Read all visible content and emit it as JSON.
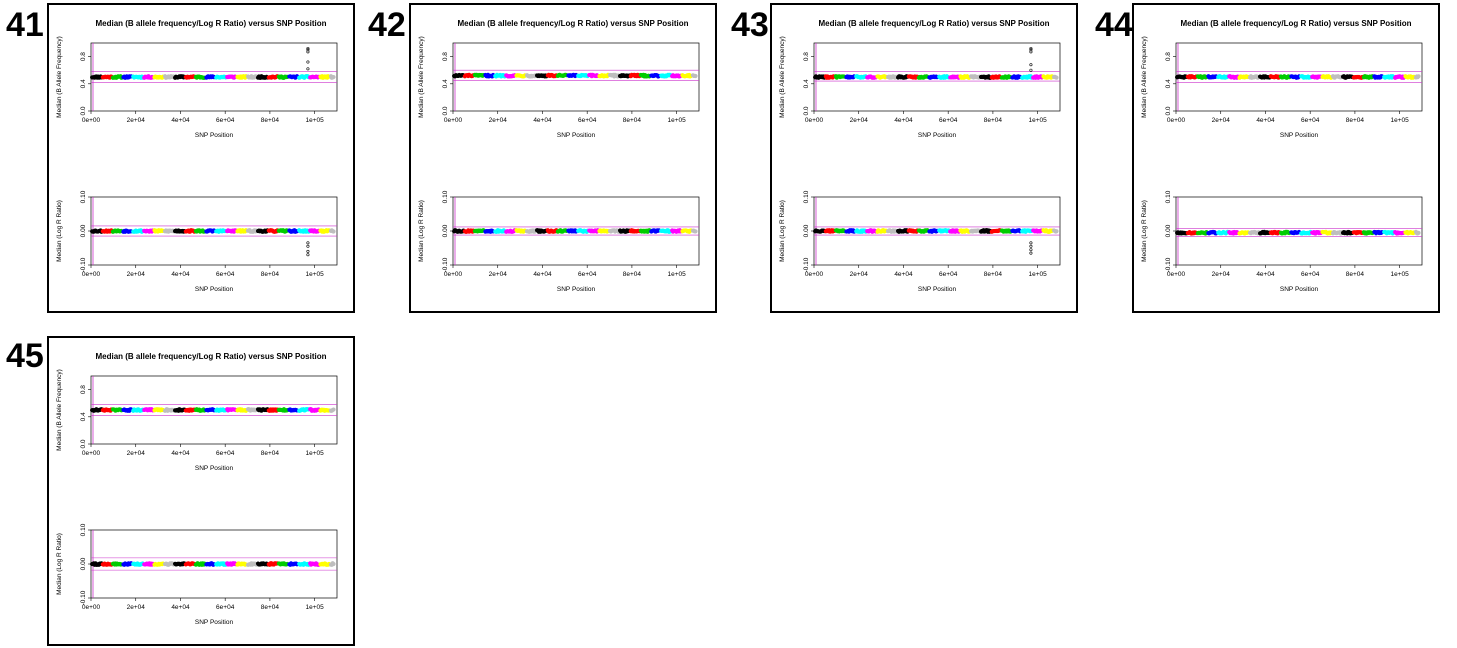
{
  "title": "Median (B allele frequency/Log R Ratio) versus SNP Position",
  "x_axis_label": "SNP Position",
  "x_tick_labels": [
    "0e+00",
    "2e+04",
    "4e+04",
    "6e+04",
    "8e+04",
    "1e+05"
  ],
  "baf_axis_label": "Median (B Allele Frequency)",
  "baf_tick_labels": [
    "0.0",
    "0.4",
    "0.8"
  ],
  "lrr_axis_label": "Median (Log R Ratio)",
  "lrr_tick_labels": [
    "-0.10",
    "0.00",
    "0.10"
  ],
  "colors": {
    "series": [
      "#000000",
      "#ff0000",
      "#00cc00",
      "#0000ff",
      "#00ffff",
      "#ff00ff",
      "#ffff00",
      "#bebebe"
    ],
    "reference_line": "#cc33cc"
  },
  "chart_data": [
    {
      "panel": "41",
      "type": "scatter",
      "x_range": [
        0,
        110000
      ],
      "baf": {
        "ylim": [
          0,
          1
        ],
        "center": 0.5,
        "ref_lines": [
          0.58,
          0.42
        ],
        "outliers": {
          "x": 97000,
          "values": [
            0.92,
            0.9,
            0.87,
            0.72,
            0.62
          ]
        }
      },
      "lrr": {
        "ylim": [
          -0.1,
          0.1
        ],
        "center": 0.0,
        "ref_lines": [
          0.015,
          -0.015
        ],
        "outliers": {
          "x": 97000,
          "values": [
            -0.035,
            -0.045,
            -0.06,
            -0.07
          ]
        }
      }
    },
    {
      "panel": "42",
      "type": "scatter",
      "x_range": [
        0,
        110000
      ],
      "baf": {
        "ylim": [
          0,
          1
        ],
        "center": 0.52,
        "ref_lines": [
          0.6,
          0.45
        ],
        "outliers": null
      },
      "lrr": {
        "ylim": [
          -0.1,
          0.1
        ],
        "center": 0.0,
        "ref_lines": [
          0.012,
          -0.012
        ],
        "outliers": null
      }
    },
    {
      "panel": "43",
      "type": "scatter",
      "x_range": [
        0,
        110000
      ],
      "baf": {
        "ylim": [
          0,
          1
        ],
        "center": 0.5,
        "ref_lines": [
          0.58,
          0.44
        ],
        "outliers": {
          "x": 97000,
          "values": [
            0.92,
            0.9,
            0.87,
            0.68,
            0.6
          ]
        }
      },
      "lrr": {
        "ylim": [
          -0.1,
          0.1
        ],
        "center": 0.0,
        "ref_lines": [
          0.012,
          -0.012
        ],
        "outliers": {
          "x": 97000,
          "values": [
            -0.035,
            -0.045,
            -0.055,
            -0.065
          ]
        }
      }
    },
    {
      "panel": "44",
      "type": "scatter",
      "x_range": [
        0,
        110000
      ],
      "baf": {
        "ylim": [
          0,
          1
        ],
        "center": 0.5,
        "ref_lines": [
          0.58,
          0.42
        ],
        "outliers": null
      },
      "lrr": {
        "ylim": [
          -0.1,
          0.1
        ],
        "center": -0.005,
        "ref_lines": [
          0.008,
          -0.016
        ],
        "outliers": null
      }
    },
    {
      "panel": "45",
      "type": "scatter",
      "x_range": [
        0,
        110000
      ],
      "baf": {
        "ylim": [
          0,
          1
        ],
        "center": 0.5,
        "ref_lines": [
          0.58,
          0.42
        ],
        "outliers": null
      },
      "lrr": {
        "ylim": [
          -0.1,
          0.1
        ],
        "center": 0.0,
        "ref_lines": [
          0.018,
          -0.018
        ],
        "outliers": null
      }
    }
  ]
}
